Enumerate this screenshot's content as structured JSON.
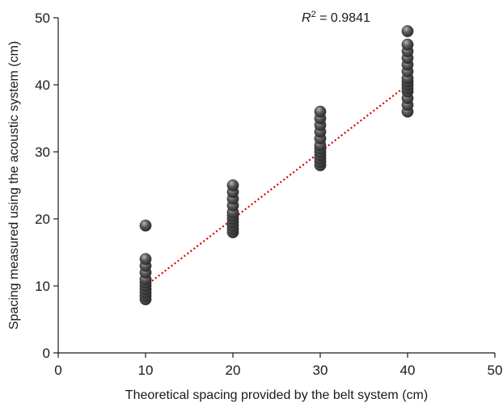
{
  "chart_data": {
    "type": "scatter",
    "xlabel": "Theoretical spacing provided by the belt system (cm)",
    "ylabel": "Spacing measured using the acoustic system (cm)",
    "xlim": [
      0,
      50
    ],
    "ylim": [
      0,
      50
    ],
    "xticks": [
      0,
      10,
      20,
      30,
      40,
      50
    ],
    "yticks": [
      0,
      10,
      20,
      30,
      40,
      50
    ],
    "annotation": {
      "r2_symbol": "R",
      "r2_exponent": "2",
      "r2_text": " = 0.9841"
    },
    "marker_color": "#4a4a4a",
    "trendline_color": "#d40000",
    "trendline": {
      "x": [
        10,
        40
      ],
      "y": [
        10,
        40
      ]
    },
    "points": [
      [
        10,
        8
      ],
      [
        10,
        8.5
      ],
      [
        10,
        9
      ],
      [
        10,
        9.5
      ],
      [
        10,
        10
      ],
      [
        10,
        10.5
      ],
      [
        10,
        11
      ],
      [
        10,
        12
      ],
      [
        10,
        13
      ],
      [
        10,
        14
      ],
      [
        10,
        19
      ],
      [
        20,
        18
      ],
      [
        20,
        18.5
      ],
      [
        20,
        19
      ],
      [
        20,
        19.5
      ],
      [
        20,
        20
      ],
      [
        20,
        20.5
      ],
      [
        20,
        21
      ],
      [
        20,
        22
      ],
      [
        20,
        23
      ],
      [
        20,
        24
      ],
      [
        20,
        25
      ],
      [
        30,
        28
      ],
      [
        30,
        28.5
      ],
      [
        30,
        29
      ],
      [
        30,
        29.5
      ],
      [
        30,
        30
      ],
      [
        30,
        30.5
      ],
      [
        30,
        31
      ],
      [
        30,
        32
      ],
      [
        30,
        33
      ],
      [
        30,
        34
      ],
      [
        30,
        35
      ],
      [
        30,
        36
      ],
      [
        40,
        36
      ],
      [
        40,
        37
      ],
      [
        40,
        38
      ],
      [
        40,
        39
      ],
      [
        40,
        39.5
      ],
      [
        40,
        40
      ],
      [
        40,
        40.5
      ],
      [
        40,
        41
      ],
      [
        40,
        42
      ],
      [
        40,
        43
      ],
      [
        40,
        44
      ],
      [
        40,
        45
      ],
      [
        40,
        46
      ],
      [
        40,
        48
      ]
    ]
  }
}
